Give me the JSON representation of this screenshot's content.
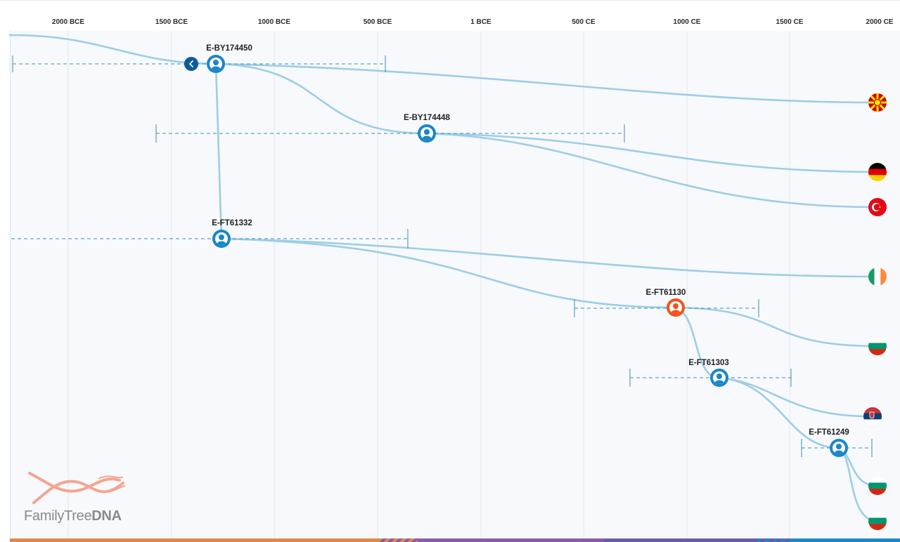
{
  "timeline": {
    "ticks": [
      "2000 BCE",
      "1500 BCE",
      "1000 BCE",
      "500 BCE",
      "1 BCE",
      "500 CE",
      "1000 CE",
      "1500 CE",
      "2000 CE"
    ]
  },
  "nodes": [
    {
      "id": "E-BY174450",
      "label": "E-BY174450",
      "color": "#1a86c8",
      "ci": [
        "off-chart",
        "~500 BCE"
      ]
    },
    {
      "id": "E-BY174448",
      "label": "E-BY174448",
      "color": "#1a86c8"
    },
    {
      "id": "E-FT61332",
      "label": "E-FT61332",
      "color": "#1a86c8"
    },
    {
      "id": "E-FT61130",
      "label": "E-FT61130",
      "color": "#f4511e"
    },
    {
      "id": "E-FT61303",
      "label": "E-FT61303",
      "color": "#1a86c8"
    },
    {
      "id": "E-FT61249",
      "label": "E-FT61249",
      "color": "#1a86c8"
    }
  ],
  "leaves": [
    {
      "flag": "north-macedonia-flag",
      "colors": [
        "#d20000",
        "#ffe600"
      ]
    },
    {
      "flag": "germany-flag",
      "colors": [
        "#000000",
        "#dd0000",
        "#ffce00"
      ]
    },
    {
      "flag": "turkey-flag",
      "colors": [
        "#e30a17",
        "#ffffff"
      ]
    },
    {
      "flag": "ireland-flag",
      "colors": [
        "#169b62",
        "#ffffff",
        "#ff883e"
      ]
    },
    {
      "flag": "bulgaria-flag",
      "colors": [
        "#ffffff",
        "#00966e",
        "#d62612"
      ]
    },
    {
      "flag": "serbia-flag",
      "colors": [
        "#c6363c",
        "#0c4076",
        "#ffffff"
      ]
    },
    {
      "flag": "bulgaria-flag",
      "colors": [
        "#ffffff",
        "#00966e",
        "#d62612"
      ]
    },
    {
      "flag": "bulgaria-flag",
      "colors": [
        "#ffffff",
        "#00966e",
        "#d62612"
      ]
    }
  ],
  "logo": {
    "name_light": "FamilyTree",
    "name_bold": "DNA"
  },
  "colors": {
    "branch": "#9ecde6",
    "ci_line": "#3d8fb3",
    "grid": "#e4e8ee",
    "back_button": "#0d5a9c"
  }
}
